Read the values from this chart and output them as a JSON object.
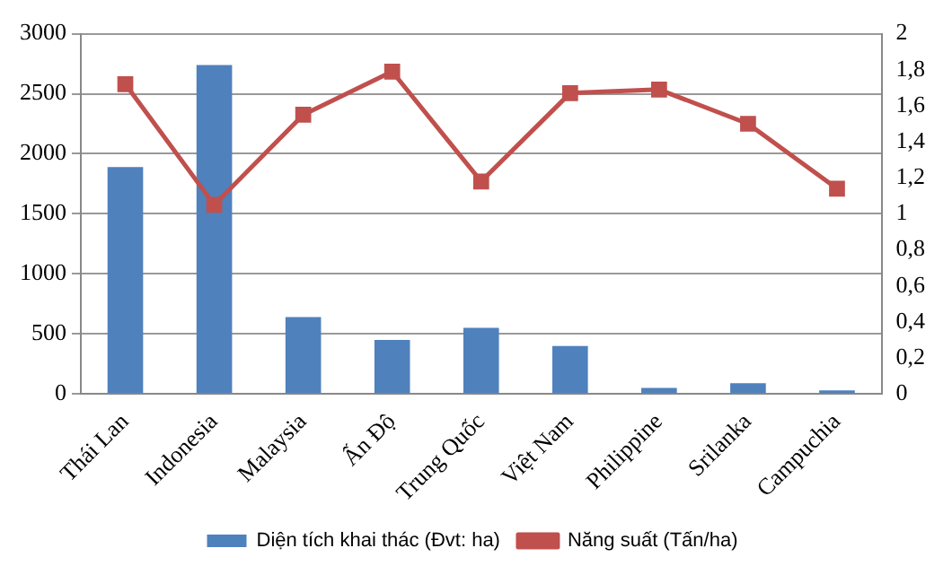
{
  "chart_data": {
    "type": "bar",
    "categories": [
      "Thái Lan",
      "Indonesia",
      "Malaysia",
      "Ấn Độ",
      "Trung Quốc",
      "Việt Nam",
      "Philippine",
      "Srilanka",
      "Campuchia"
    ],
    "series": [
      {
        "name": "Diện tích khai thác (Đvt: ha)",
        "color": "#4f81bd",
        "values": [
          1890,
          2740,
          640,
          450,
          550,
          400,
          50,
          90,
          30
        ]
      },
      {
        "name": "Năng suất (Tấn/ha)",
        "type": "line",
        "axis": "y2",
        "color": "#c0504d",
        "marker": "square",
        "values": [
          1.72,
          1.05,
          1.55,
          1.79,
          1.18,
          1.67,
          1.69,
          1.5,
          1.14
        ]
      }
    ],
    "ylim": [
      0,
      3000
    ],
    "yticks": [
      0,
      500,
      1000,
      1500,
      2000,
      2500,
      3000
    ],
    "y2lim": [
      0,
      2
    ],
    "y2ticks": [
      0,
      {
        "value": 0.2,
        "label": "0,2"
      },
      {
        "value": 0.4,
        "label": "0,4"
      },
      {
        "value": 0.6,
        "label": "0,6"
      },
      {
        "value": 0.8,
        "label": "0,8"
      },
      1,
      {
        "value": 1.2,
        "label": "1,2"
      },
      {
        "value": 1.4,
        "label": "1,4"
      },
      {
        "value": 1.6,
        "label": "1,6"
      },
      {
        "value": 1.8,
        "label": "1,8"
      },
      2
    ],
    "grid": "y",
    "legend": "bottom"
  }
}
